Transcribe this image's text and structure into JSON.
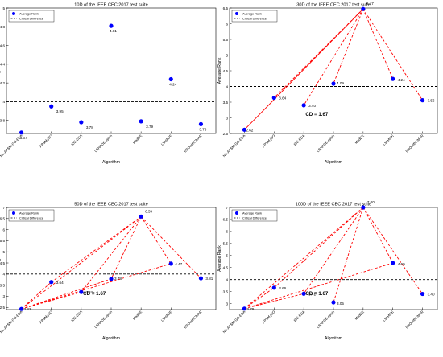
{
  "figure": {
    "background": "#ffffff"
  },
  "colors": {
    "point": "#0000ff",
    "line": "#ff0000",
    "cd_line": "#000000",
    "axis": "#000000"
  },
  "legend": {
    "marker_label": "Average Rank",
    "line_label": "Critical Difference",
    "placement": "top-left"
  },
  "chart_data": [
    {
      "type": "scatter",
      "title": "10D of the IEEE CEC 2017 test suite",
      "xlabel": "Algorithm",
      "ylabel": "Average Rank",
      "categories": [
        "NL-APSM-GO-EDA",
        "APSM-jSO",
        "IDE-EDA",
        "LSHADE-epsin",
        "MadDE",
        "LSHADE",
        "EBOwithCMAR"
      ],
      "values": [
        3.67,
        3.95,
        3.78,
        4.81,
        3.79,
        4.24,
        3.76
      ],
      "value_labels": [
        "3.67",
        "3.95",
        "3.78",
        "4.81",
        "3.79",
        "4.24",
        "3.76"
      ],
      "critical_difference_level": 4.0,
      "ylim": [
        3.66,
        5.0
      ],
      "yticks": [
        3.8,
        4,
        4.2,
        4.4,
        4.6,
        4.8,
        5
      ],
      "ytick_labels": [
        "3.8",
        "4",
        "4.2",
        "4.4",
        "4.6",
        "4.8",
        "5"
      ],
      "cd_label": "",
      "connections": []
    },
    {
      "type": "scatter",
      "title": "30D of the IEEE CEC 2017 test suite",
      "xlabel": "Algorithm",
      "ylabel": "Average Rank",
      "categories": [
        "NL-APSM-GO-EDA",
        "APSM-jSO",
        "IDE-EDA",
        "LSHADE-epsin",
        "MadDE",
        "LSHADE",
        "EBOwithCMAR"
      ],
      "values": [
        2.62,
        3.64,
        3.4,
        4.09,
        6.47,
        4.24,
        3.56
      ],
      "value_labels": [
        "2.62",
        "3.64",
        "3.40",
        "4.09",
        "6.47",
        "4.24",
        "3.56"
      ],
      "critical_difference_level": 4.0,
      "ylim": [
        2.5,
        6.5
      ],
      "yticks": [
        2.5,
        3,
        3.5,
        4,
        4.5,
        5,
        5.5,
        6,
        6.5
      ],
      "ytick_labels": [
        "2.5",
        "3",
        "3.5",
        "4",
        "4.5",
        "5",
        "5.5",
        "6",
        "6.5"
      ],
      "cd_label": "CD = 1.67",
      "connections": [
        [
          4,
          0,
          "solid"
        ],
        [
          4,
          1,
          "dashed"
        ],
        [
          4,
          2,
          "dashed"
        ],
        [
          4,
          3,
          "dashed"
        ],
        [
          4,
          5,
          "dashed"
        ],
        [
          4,
          6,
          "dashed"
        ]
      ]
    },
    {
      "type": "scatter",
      "title": "50D of the IEEE CEC 2017 test suite",
      "xlabel": "Algorithm",
      "ylabel": "Average Rank",
      "categories": [
        "NL-APSM-GO-EDA",
        "APSM-jSO",
        "IDE-EDA",
        "LSHADE-epsin",
        "MadDE",
        "LSHADE",
        "EBOwithCMAR"
      ],
      "values": [
        2.43,
        3.64,
        3.19,
        3.78,
        6.59,
        4.47,
        3.81
      ],
      "value_labels": [
        "2.43",
        "3.64",
        "3.19",
        "3.78",
        "6.59",
        "4.47",
        "3.81"
      ],
      "critical_difference_level": 4.0,
      "ylim": [
        2.4,
        7.0
      ],
      "yticks": [
        2.5,
        3,
        3.5,
        4,
        4.5,
        5,
        5.5,
        6,
        6.5,
        7
      ],
      "ytick_labels": [
        "2.5",
        "3",
        "3.5",
        "4",
        "4.5",
        "5",
        "5.5",
        "6",
        "6.5",
        "7"
      ],
      "cd_label": "CD = 1.67",
      "connections": [
        [
          0,
          1,
          "dashed"
        ],
        [
          0,
          2,
          "dashed"
        ],
        [
          0,
          3,
          "dashed"
        ],
        [
          0,
          4,
          "dashed"
        ],
        [
          0,
          5,
          "dashed"
        ],
        [
          4,
          1,
          "dashed"
        ],
        [
          4,
          2,
          "dashed"
        ],
        [
          4,
          3,
          "dashed"
        ],
        [
          4,
          5,
          "dashed"
        ],
        [
          4,
          6,
          "dashed"
        ]
      ]
    },
    {
      "type": "scatter",
      "title": "100D of the IEEE CEC 2017 test suite",
      "xlabel": "Algorithm",
      "ylabel": "Average Rank",
      "categories": [
        "NL-APSM-GO-EDA",
        "APSM-jSO",
        "IDE-EDA",
        "LSHADE-epsin",
        "MadDE",
        "LSHADE",
        "EBOwithCMAR"
      ],
      "values": [
        2.79,
        3.66,
        3.41,
        3.05,
        7.0,
        4.69,
        3.4
      ],
      "value_labels": [
        "2.79",
        "3.66",
        "3.41",
        "3.05",
        "7.00",
        "4.69",
        "3.40"
      ],
      "critical_difference_level": 4.0,
      "ylim": [
        2.75,
        7.0
      ],
      "yticks": [
        3,
        3.5,
        4,
        4.5,
        5,
        5.5,
        6,
        6.5,
        7
      ],
      "ytick_labels": [
        "3",
        "3.5",
        "4",
        "4.5",
        "5",
        "5.5",
        "6",
        "6.5",
        "7"
      ],
      "cd_label": "CD = 1.67",
      "connections": [
        [
          0,
          1,
          "dashed"
        ],
        [
          0,
          2,
          "dashed"
        ],
        [
          0,
          4,
          "dashed"
        ],
        [
          0,
          5,
          "dashed"
        ],
        [
          4,
          1,
          "dashed"
        ],
        [
          4,
          2,
          "dashed"
        ],
        [
          4,
          3,
          "dashed"
        ],
        [
          4,
          5,
          "dashed"
        ],
        [
          4,
          6,
          "dashed"
        ]
      ]
    }
  ]
}
